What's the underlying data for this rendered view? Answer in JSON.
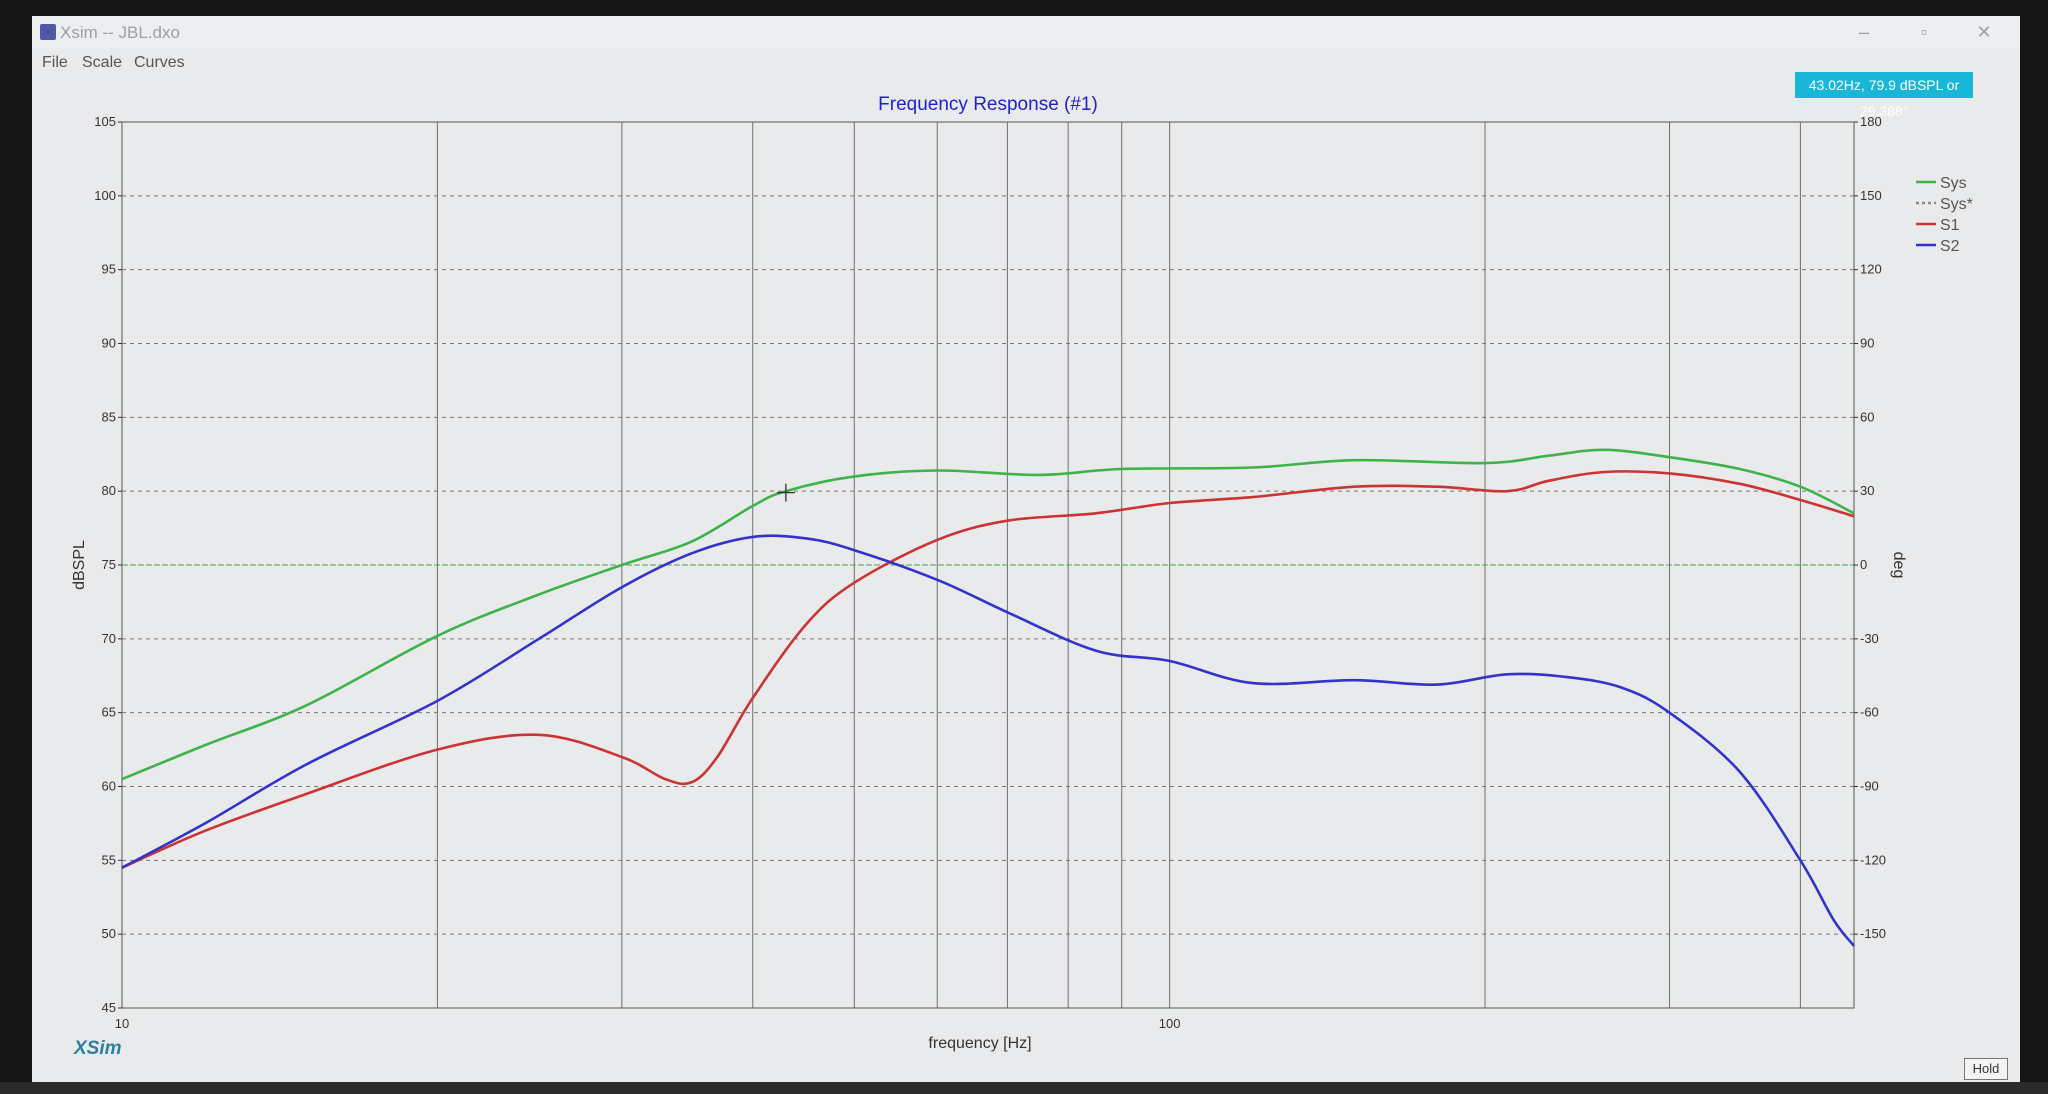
{
  "window": {
    "title": "Xsim -- JBL.dxo",
    "minimize_icon": "minimize-icon",
    "maximize_icon": "restore-icon",
    "close_icon": "close-icon"
  },
  "menu": {
    "items": [
      "File",
      "Scale",
      "Curves"
    ]
  },
  "cursor_readout": "43.02Hz, 79.9 dBSPL or 29.388°",
  "logo": "XSim",
  "hold_button": "Hold",
  "colors": {
    "plot_bg": "#e9eaec",
    "sys": "#3db34a",
    "sys_star": "#8a8a8a",
    "s1": "#cc3333",
    "s2": "#3333cc",
    "title": "#2222cc",
    "readout": "#18b7d8"
  },
  "chart_data": {
    "type": "line",
    "title": "Frequency Response (#1)",
    "xlabel": "frequency [Hz]",
    "ylabel": "dBSPL",
    "y2label": "deg",
    "xscale": "log",
    "xlim": [
      10,
      450
    ],
    "ylim": [
      45,
      105
    ],
    "y2lim": [
      -180,
      180
    ],
    "x_tick_labels": [
      "10",
      "100"
    ],
    "y_ticks": [
      45,
      50,
      55,
      60,
      65,
      70,
      75,
      80,
      85,
      90,
      95,
      100,
      105
    ],
    "y2_ticks": [
      -150,
      -120,
      -90,
      -60,
      -30,
      0,
      30,
      60,
      90,
      120,
      150,
      180
    ],
    "grid": true,
    "legend_position": "top-right",
    "series": [
      {
        "name": "Sys",
        "color": "#3db34a",
        "points": [
          [
            10,
            60.5
          ],
          [
            12,
            62.8
          ],
          [
            15,
            65.5
          ],
          [
            20,
            70.2
          ],
          [
            25,
            73
          ],
          [
            30,
            75
          ],
          [
            35,
            76.6
          ],
          [
            40,
            79
          ],
          [
            43,
            80
          ],
          [
            50,
            81
          ],
          [
            60,
            81.4
          ],
          [
            75,
            81.1
          ],
          [
            90,
            81.5
          ],
          [
            120,
            81.6
          ],
          [
            150,
            82.1
          ],
          [
            200,
            81.9
          ],
          [
            230,
            82.4
          ],
          [
            260,
            82.8
          ],
          [
            300,
            82.3
          ],
          [
            350,
            81.5
          ],
          [
            400,
            80.3
          ],
          [
            450,
            78.5
          ]
        ]
      },
      {
        "name": "Sys*",
        "color": "#8a8a8a",
        "points": []
      },
      {
        "name": "S1",
        "color": "#cc3333",
        "points": [
          [
            10,
            54.5
          ],
          [
            12,
            57
          ],
          [
            15,
            59.5
          ],
          [
            20,
            62.5
          ],
          [
            25,
            63.5
          ],
          [
            30,
            62
          ],
          [
            33,
            60.5
          ],
          [
            35,
            60.3
          ],
          [
            37,
            62
          ],
          [
            40,
            66
          ],
          [
            45,
            71
          ],
          [
            50,
            73.8
          ],
          [
            60,
            76.7
          ],
          [
            70,
            78
          ],
          [
            85,
            78.5
          ],
          [
            100,
            79.2
          ],
          [
            120,
            79.6
          ],
          [
            150,
            80.3
          ],
          [
            180,
            80.3
          ],
          [
            210,
            80
          ],
          [
            230,
            80.7
          ],
          [
            260,
            81.3
          ],
          [
            300,
            81.2
          ],
          [
            350,
            80.5
          ],
          [
            400,
            79.4
          ],
          [
            450,
            78.3
          ]
        ]
      },
      {
        "name": "S2",
        "color": "#3333cc",
        "points": [
          [
            10,
            54.5
          ],
          [
            12,
            57.5
          ],
          [
            15,
            61.5
          ],
          [
            20,
            65.8
          ],
          [
            25,
            70
          ],
          [
            30,
            73.5
          ],
          [
            35,
            75.8
          ],
          [
            40,
            76.9
          ],
          [
            45,
            76.8
          ],
          [
            50,
            76
          ],
          [
            60,
            74
          ],
          [
            70,
            71.8
          ],
          [
            85,
            69.2
          ],
          [
            100,
            68.5
          ],
          [
            120,
            67
          ],
          [
            150,
            67.2
          ],
          [
            180,
            66.9
          ],
          [
            210,
            67.6
          ],
          [
            240,
            67.4
          ],
          [
            270,
            66.7
          ],
          [
            300,
            65
          ],
          [
            350,
            61
          ],
          [
            400,
            55
          ],
          [
            430,
            51
          ],
          [
            450,
            49.2
          ]
        ]
      }
    ]
  }
}
